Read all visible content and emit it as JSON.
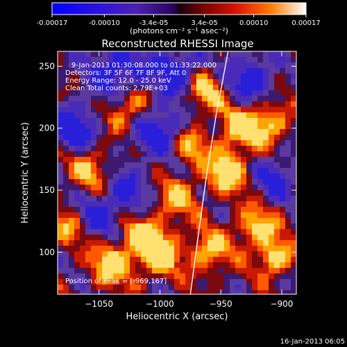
{
  "colorbar": {
    "ticks": [
      "-0.00017",
      "-0.00010",
      "-3.4e-05",
      "3.4e-05",
      "0.00010",
      "0.00017"
    ],
    "units": "(photons cm⁻² s⁻¹ asec⁻²)",
    "range": [
      -0.00017,
      0.00017
    ]
  },
  "chart_data": {
    "type": "heatmap",
    "title": "Reconstructed RHESSI Image",
    "xlabel": "Heliocentric X (arcsec)",
    "ylabel": "Heliocentric Y (arcsec)",
    "xlim": [
      -1084,
      -888
    ],
    "ylim": [
      66,
      262
    ],
    "x_ticks": [
      {
        "value": -1050,
        "label": "−1050"
      },
      {
        "value": -1000,
        "label": "−1000"
      },
      {
        "value": -950,
        "label": "−950"
      },
      {
        "value": -900,
        "label": "−900"
      }
    ],
    "y_ticks": [
      {
        "value": 100,
        "label": "100"
      },
      {
        "value": 150,
        "label": "150"
      },
      {
        "value": 200,
        "label": "200"
      },
      {
        "value": 250,
        "label": "250"
      }
    ],
    "annotations": [
      "9-Jan-2013 01:30:08.000 to 01:33:22.000",
      "Detectors: 3F 5F 6F 7F 8F 9F, Att 0",
      "Energy Range: 12.0 - 25.0 keV",
      "Clean     Total counts: 2.79E+03"
    ],
    "peak_label": "Position of Peak = [-969,167]",
    "limb_arc": [
      [
        -975,
        66
      ],
      [
        -969,
        110
      ],
      [
        -962,
        160
      ],
      [
        -954,
        210
      ],
      [
        -944,
        262
      ]
    ]
  },
  "footer": {
    "timestamp": "16-Jan-2013 06:05"
  }
}
